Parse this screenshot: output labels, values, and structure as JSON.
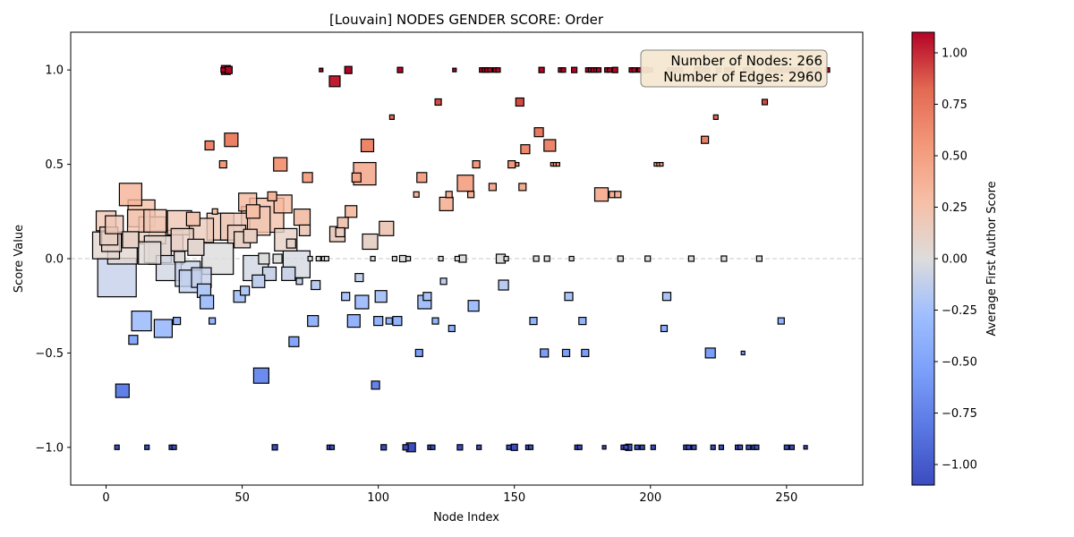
{
  "chart_data": {
    "type": "scatter",
    "title": "[Louvain] NODES GENDER SCORE: Order",
    "xlabel": "Node Index",
    "ylabel": "Score Value",
    "xlim": [
      -13,
      278
    ],
    "ylim": [
      -1.2,
      1.2
    ],
    "x_ticks": [
      0,
      50,
      100,
      150,
      200,
      250
    ],
    "x_tick_labels": [
      "0",
      "50",
      "100",
      "150",
      "200",
      "250"
    ],
    "y_ticks": [
      -1.0,
      -0.5,
      0.0,
      0.5,
      1.0
    ],
    "y_tick_labels": [
      "−1.0",
      "−0.5",
      "0.0",
      "0.5",
      "1.0"
    ],
    "reference_line": {
      "y": 0,
      "style": "dashed",
      "color": "#c8c8c8"
    },
    "info_box": {
      "lines": [
        "Number of Nodes: 266",
        "Number of Edges: 2960"
      ],
      "fill": "#f5e8d2",
      "position": "top-right"
    },
    "colorbar": {
      "label": "Average First Author Score",
      "range": [
        -1.1,
        1.1
      ],
      "ticks": [
        -1.0,
        -0.75,
        -0.5,
        -0.25,
        0.0,
        0.25,
        0.5,
        0.75,
        1.0
      ],
      "tick_labels": [
        "−1.00",
        "−0.75",
        "−0.50",
        "−0.25",
        "0.00",
        "0.25",
        "0.50",
        "0.75",
        "1.00"
      ],
      "colormap": "coolwarm"
    },
    "point_encoding": "square markers; marker size grows with node weight; color = average first author score",
    "points": [
      {
        "x": 0,
        "y": 0.07,
        "s": 30
      },
      {
        "x": 0,
        "y": 0.2,
        "s": 22
      },
      {
        "x": 1,
        "y": 0.12,
        "s": 20
      },
      {
        "x": 3,
        "y": 0.18,
        "s": 20
      },
      {
        "x": 2,
        "y": 0.09,
        "s": 22
      },
      {
        "x": 4,
        "y": -0.1,
        "s": 43
      },
      {
        "x": 6,
        "y": 0.05,
        "s": 33
      },
      {
        "x": 4,
        "y": -1.0,
        "s": 5
      },
      {
        "x": 6,
        "y": -0.7,
        "s": 15
      },
      {
        "x": 9,
        "y": 0.34,
        "s": 25
      },
      {
        "x": 10,
        "y": -0.43,
        "s": 10
      },
      {
        "x": 9,
        "y": 0.1,
        "s": 18
      },
      {
        "x": 12,
        "y": 0.2,
        "s": 25
      },
      {
        "x": 13,
        "y": 0.24,
        "s": 30
      },
      {
        "x": 13,
        "y": -0.33,
        "s": 22
      },
      {
        "x": 15,
        "y": -1.0,
        "s": 5
      },
      {
        "x": 16,
        "y": 0.03,
        "s": 25
      },
      {
        "x": 17,
        "y": 0.15,
        "s": 30
      },
      {
        "x": 18,
        "y": 0.2,
        "s": 25
      },
      {
        "x": 19,
        "y": 0.05,
        "s": 30
      },
      {
        "x": 21,
        "y": -0.37,
        "s": 20
      },
      {
        "x": 22,
        "y": 0.06,
        "s": 38
      },
      {
        "x": 23,
        "y": -0.05,
        "s": 28
      },
      {
        "x": 24,
        "y": -1.0,
        "s": 5
      },
      {
        "x": 25,
        "y": -1.0,
        "s": 5
      },
      {
        "x": 26,
        "y": -0.33,
        "s": 8
      },
      {
        "x": 27,
        "y": 0.19,
        "s": 27
      },
      {
        "x": 27,
        "y": 0.01,
        "s": 12
      },
      {
        "x": 28,
        "y": 0.1,
        "s": 25
      },
      {
        "x": 30,
        "y": -0.08,
        "s": 28
      },
      {
        "x": 31,
        "y": -0.12,
        "s": 25
      },
      {
        "x": 32,
        "y": 0.21,
        "s": 15
      },
      {
        "x": 33,
        "y": 0.06,
        "s": 18
      },
      {
        "x": 35,
        "y": 0.15,
        "s": 27
      },
      {
        "x": 35,
        "y": -0.1,
        "s": 22
      },
      {
        "x": 36,
        "y": -0.17,
        "s": 15
      },
      {
        "x": 37,
        "y": -0.23,
        "s": 15
      },
      {
        "x": 38,
        "y": 0.6,
        "s": 10
      },
      {
        "x": 39,
        "y": -0.33,
        "s": 7
      },
      {
        "x": 40,
        "y": 0.25,
        "s": 6
      },
      {
        "x": 41,
        "y": 0.0,
        "s": 35
      },
      {
        "x": 42,
        "y": 0.17,
        "s": 30
      },
      {
        "x": 43,
        "y": 1.0,
        "s": 5
      },
      {
        "x": 43,
        "y": 0.5,
        "s": 8
      },
      {
        "x": 44,
        "y": 1.0,
        "s": 10
      },
      {
        "x": 45,
        "y": 1.0,
        "s": 8
      },
      {
        "x": 46,
        "y": 0.63,
        "s": 15
      },
      {
        "x": 47,
        "y": 0.17,
        "s": 30
      },
      {
        "x": 48,
        "y": 0.13,
        "s": 20
      },
      {
        "x": 49,
        "y": -0.2,
        "s": 13
      },
      {
        "x": 50,
        "y": 0.1,
        "s": 18
      },
      {
        "x": 51,
        "y": -0.17,
        "s": 10
      },
      {
        "x": 52,
        "y": 0.3,
        "s": 20
      },
      {
        "x": 53,
        "y": 0.12,
        "s": 15
      },
      {
        "x": 54,
        "y": 0.25,
        "s": 15
      },
      {
        "x": 55,
        "y": 0.2,
        "s": 32
      },
      {
        "x": 55,
        "y": -0.05,
        "s": 28
      },
      {
        "x": 56,
        "y": -0.12,
        "s": 14
      },
      {
        "x": 57,
        "y": -0.62,
        "s": 17
      },
      {
        "x": 58,
        "y": 0.0,
        "s": 12
      },
      {
        "x": 59,
        "y": 0.23,
        "s": 38
      },
      {
        "x": 60,
        "y": -0.08,
        "s": 15
      },
      {
        "x": 61,
        "y": 0.33,
        "s": 10
      },
      {
        "x": 62,
        "y": -1.0,
        "s": 6
      },
      {
        "x": 63,
        "y": 0.0,
        "s": 10
      },
      {
        "x": 64,
        "y": 0.5,
        "s": 15
      },
      {
        "x": 65,
        "y": 0.29,
        "s": 20
      },
      {
        "x": 66,
        "y": 0.1,
        "s": 25
      },
      {
        "x": 67,
        "y": -0.08,
        "s": 15
      },
      {
        "x": 68,
        "y": 0.08,
        "s": 10
      },
      {
        "x": 69,
        "y": -0.44,
        "s": 11
      },
      {
        "x": 70,
        "y": -0.03,
        "s": 30
      },
      {
        "x": 71,
        "y": -0.12,
        "s": 7
      },
      {
        "x": 72,
        "y": 0.22,
        "s": 18
      },
      {
        "x": 73,
        "y": 0.15,
        "s": 12
      },
      {
        "x": 74,
        "y": 0.43,
        "s": 11
      },
      {
        "x": 75,
        "y": 0.0,
        "s": 5
      },
      {
        "x": 76,
        "y": -0.33,
        "s": 12
      },
      {
        "x": 77,
        "y": -0.14,
        "s": 10
      },
      {
        "x": 78,
        "y": 0.0,
        "s": 5
      },
      {
        "x": 79,
        "y": 1.0,
        "s": 4
      },
      {
        "x": 80,
        "y": 0.0,
        "s": 5
      },
      {
        "x": 81,
        "y": 0.0,
        "s": 5
      },
      {
        "x": 82,
        "y": -1.0,
        "s": 5
      },
      {
        "x": 83,
        "y": -1.0,
        "s": 5
      },
      {
        "x": 84,
        "y": 0.94,
        "s": 12
      },
      {
        "x": 85,
        "y": 0.13,
        "s": 17
      },
      {
        "x": 86,
        "y": 0.14,
        "s": 10
      },
      {
        "x": 87,
        "y": 0.19,
        "s": 12
      },
      {
        "x": 88,
        "y": -0.2,
        "s": 9
      },
      {
        "x": 89,
        "y": 1.0,
        "s": 8
      },
      {
        "x": 90,
        "y": 0.25,
        "s": 13
      },
      {
        "x": 91,
        "y": -0.33,
        "s": 14
      },
      {
        "x": 92,
        "y": 0.43,
        "s": 10
      },
      {
        "x": 93,
        "y": -0.1,
        "s": 9
      },
      {
        "x": 94,
        "y": -0.23,
        "s": 15
      },
      {
        "x": 95,
        "y": 0.45,
        "s": 25
      },
      {
        "x": 96,
        "y": 0.6,
        "s": 14
      },
      {
        "x": 97,
        "y": 0.09,
        "s": 17
      },
      {
        "x": 98,
        "y": 0.0,
        "s": 5
      },
      {
        "x": 99,
        "y": -0.67,
        "s": 9
      },
      {
        "x": 100,
        "y": -0.33,
        "s": 10
      },
      {
        "x": 101,
        "y": -0.2,
        "s": 13
      },
      {
        "x": 102,
        "y": -1.0,
        "s": 6
      },
      {
        "x": 103,
        "y": 0.16,
        "s": 16
      },
      {
        "x": 104,
        "y": -0.33,
        "s": 7
      },
      {
        "x": 105,
        "y": 0.75,
        "s": 5
      },
      {
        "x": 106,
        "y": 0.0,
        "s": 5
      },
      {
        "x": 107,
        "y": -0.33,
        "s": 10
      },
      {
        "x": 108,
        "y": 1.0,
        "s": 6
      },
      {
        "x": 109,
        "y": 0.0,
        "s": 7
      },
      {
        "x": 110,
        "y": -1.0,
        "s": 6
      },
      {
        "x": 111,
        "y": 0.0,
        "s": 5
      },
      {
        "x": 112,
        "y": -1.0,
        "s": 10
      },
      {
        "x": 114,
        "y": 0.34,
        "s": 6
      },
      {
        "x": 115,
        "y": -0.5,
        "s": 8
      },
      {
        "x": 116,
        "y": 0.43,
        "s": 11
      },
      {
        "x": 117,
        "y": -0.23,
        "s": 15
      },
      {
        "x": 118,
        "y": -0.2,
        "s": 9
      },
      {
        "x": 119,
        "y": -1.0,
        "s": 5
      },
      {
        "x": 120,
        "y": -1.0,
        "s": 5
      },
      {
        "x": 121,
        "y": -0.33,
        "s": 7
      },
      {
        "x": 122,
        "y": 0.83,
        "s": 7
      },
      {
        "x": 123,
        "y": 0.0,
        "s": 5
      },
      {
        "x": 124,
        "y": -0.12,
        "s": 7
      },
      {
        "x": 125,
        "y": 0.29,
        "s": 15
      },
      {
        "x": 126,
        "y": 0.34,
        "s": 7
      },
      {
        "x": 127,
        "y": -0.37,
        "s": 7
      },
      {
        "x": 128,
        "y": 1.0,
        "s": 4
      },
      {
        "x": 129,
        "y": 0.0,
        "s": 5
      },
      {
        "x": 130,
        "y": -1.0,
        "s": 6
      },
      {
        "x": 131,
        "y": 0.0,
        "s": 8
      },
      {
        "x": 132,
        "y": 0.4,
        "s": 18
      },
      {
        "x": 134,
        "y": 0.34,
        "s": 7
      },
      {
        "x": 135,
        "y": -0.25,
        "s": 12
      },
      {
        "x": 136,
        "y": 0.5,
        "s": 8
      },
      {
        "x": 137,
        "y": -1.0,
        "s": 5
      },
      {
        "x": 138,
        "y": 1.0,
        "s": 5
      },
      {
        "x": 139,
        "y": 1.0,
        "s": 5
      },
      {
        "x": 140,
        "y": 1.0,
        "s": 5
      },
      {
        "x": 141,
        "y": 1.0,
        "s": 5
      },
      {
        "x": 142,
        "y": 0.38,
        "s": 8
      },
      {
        "x": 143,
        "y": 1.0,
        "s": 5
      },
      {
        "x": 144,
        "y": 1.0,
        "s": 5
      },
      {
        "x": 145,
        "y": 0.0,
        "s": 10
      },
      {
        "x": 146,
        "y": -0.14,
        "s": 11
      },
      {
        "x": 147,
        "y": 0.0,
        "s": 5
      },
      {
        "x": 148,
        "y": -1.0,
        "s": 5
      },
      {
        "x": 149,
        "y": 0.5,
        "s": 8
      },
      {
        "x": 150,
        "y": -1.0,
        "s": 7
      },
      {
        "x": 151,
        "y": 0.5,
        "s": 4
      },
      {
        "x": 152,
        "y": 0.83,
        "s": 9
      },
      {
        "x": 153,
        "y": 0.38,
        "s": 8
      },
      {
        "x": 154,
        "y": 0.58,
        "s": 10
      },
      {
        "x": 155,
        "y": -1.0,
        "s": 5
      },
      {
        "x": 156,
        "y": -1.0,
        "s": 5
      },
      {
        "x": 157,
        "y": -0.33,
        "s": 8
      },
      {
        "x": 158,
        "y": 0.0,
        "s": 6
      },
      {
        "x": 159,
        "y": 0.67,
        "s": 10
      },
      {
        "x": 160,
        "y": 1.0,
        "s": 6
      },
      {
        "x": 161,
        "y": -0.5,
        "s": 9
      },
      {
        "x": 162,
        "y": 0.0,
        "s": 6
      },
      {
        "x": 163,
        "y": 0.6,
        "s": 13
      },
      {
        "x": 164,
        "y": 0.5,
        "s": 4
      },
      {
        "x": 165,
        "y": 0.5,
        "s": 4
      },
      {
        "x": 166,
        "y": 0.5,
        "s": 4
      },
      {
        "x": 167,
        "y": 1.0,
        "s": 5
      },
      {
        "x": 168,
        "y": 1.0,
        "s": 5
      },
      {
        "x": 169,
        "y": -0.5,
        "s": 8
      },
      {
        "x": 170,
        "y": -0.2,
        "s": 9
      },
      {
        "x": 171,
        "y": 0.0,
        "s": 5
      },
      {
        "x": 172,
        "y": 1.0,
        "s": 6
      },
      {
        "x": 173,
        "y": -1.0,
        "s": 5
      },
      {
        "x": 174,
        "y": -1.0,
        "s": 5
      },
      {
        "x": 175,
        "y": -0.33,
        "s": 8
      },
      {
        "x": 176,
        "y": -0.5,
        "s": 8
      },
      {
        "x": 177,
        "y": 1.0,
        "s": 5
      },
      {
        "x": 178,
        "y": 1.0,
        "s": 5
      },
      {
        "x": 179,
        "y": 1.0,
        "s": 5
      },
      {
        "x": 180,
        "y": 1.0,
        "s": 5
      },
      {
        "x": 181,
        "y": 1.0,
        "s": 5
      },
      {
        "x": 182,
        "y": 0.34,
        "s": 15
      },
      {
        "x": 183,
        "y": -1.0,
        "s": 4
      },
      {
        "x": 184,
        "y": 1.0,
        "s": 5
      },
      {
        "x": 185,
        "y": 1.0,
        "s": 5
      },
      {
        "x": 186,
        "y": 0.34,
        "s": 7
      },
      {
        "x": 187,
        "y": 1.0,
        "s": 6
      },
      {
        "x": 188,
        "y": 0.34,
        "s": 7
      },
      {
        "x": 189,
        "y": 0.0,
        "s": 6
      },
      {
        "x": 190,
        "y": -1.0,
        "s": 5
      },
      {
        "x": 191,
        "y": -1.0,
        "s": 5
      },
      {
        "x": 192,
        "y": -1.0,
        "s": 7
      },
      {
        "x": 193,
        "y": 1.0,
        "s": 5
      },
      {
        "x": 194,
        "y": 1.0,
        "s": 5
      },
      {
        "x": 195,
        "y": -1.0,
        "s": 5
      },
      {
        "x": 196,
        "y": 1.0,
        "s": 5
      },
      {
        "x": 197,
        "y": -1.0,
        "s": 5
      },
      {
        "x": 198,
        "y": 1.0,
        "s": 6
      },
      {
        "x": 199,
        "y": 0.0,
        "s": 6
      },
      {
        "x": 200,
        "y": 1.0,
        "s": 5
      },
      {
        "x": 201,
        "y": -1.0,
        "s": 5
      },
      {
        "x": 202,
        "y": 0.5,
        "s": 4
      },
      {
        "x": 203,
        "y": 0.5,
        "s": 4
      },
      {
        "x": 204,
        "y": 0.5,
        "s": 4
      },
      {
        "x": 205,
        "y": -0.37,
        "s": 7
      },
      {
        "x": 206,
        "y": -0.2,
        "s": 9
      },
      {
        "x": 207,
        "y": 1.0,
        "s": 5
      },
      {
        "x": 208,
        "y": 1.0,
        "s": 5
      },
      {
        "x": 209,
        "y": 1.0,
        "s": 5
      },
      {
        "x": 210,
        "y": 1.0,
        "s": 5
      },
      {
        "x": 211,
        "y": 1.0,
        "s": 5
      },
      {
        "x": 213,
        "y": -1.0,
        "s": 5
      },
      {
        "x": 214,
        "y": -1.0,
        "s": 5
      },
      {
        "x": 215,
        "y": 0.0,
        "s": 6
      },
      {
        "x": 216,
        "y": -1.0,
        "s": 5
      },
      {
        "x": 217,
        "y": 1.0,
        "s": 5
      },
      {
        "x": 218,
        "y": 1.0,
        "s": 7
      },
      {
        "x": 219,
        "y": 1.0,
        "s": 5
      },
      {
        "x": 220,
        "y": 0.63,
        "s": 8
      },
      {
        "x": 221,
        "y": 1.0,
        "s": 5
      },
      {
        "x": 222,
        "y": -0.5,
        "s": 11
      },
      {
        "x": 223,
        "y": -1.0,
        "s": 5
      },
      {
        "x": 224,
        "y": 0.75,
        "s": 5
      },
      {
        "x": 225,
        "y": 1.0,
        "s": 5
      },
      {
        "x": 226,
        "y": -1.0,
        "s": 5
      },
      {
        "x": 227,
        "y": 0.0,
        "s": 6
      },
      {
        "x": 228,
        "y": 1.0,
        "s": 5
      },
      {
        "x": 229,
        "y": 1.0,
        "s": 5
      },
      {
        "x": 230,
        "y": 1.0,
        "s": 5
      },
      {
        "x": 232,
        "y": -1.0,
        "s": 5
      },
      {
        "x": 233,
        "y": -1.0,
        "s": 5
      },
      {
        "x": 234,
        "y": -0.5,
        "s": 4
      },
      {
        "x": 235,
        "y": 1.0,
        "s": 5
      },
      {
        "x": 236,
        "y": -1.0,
        "s": 5
      },
      {
        "x": 237,
        "y": 1.0,
        "s": 5
      },
      {
        "x": 238,
        "y": -1.0,
        "s": 5
      },
      {
        "x": 239,
        "y": -1.0,
        "s": 5
      },
      {
        "x": 240,
        "y": 0.0,
        "s": 6
      },
      {
        "x": 242,
        "y": 0.83,
        "s": 6
      },
      {
        "x": 243,
        "y": 1.0,
        "s": 5
      },
      {
        "x": 245,
        "y": 1.0,
        "s": 5
      },
      {
        "x": 247,
        "y": 1.0,
        "s": 5
      },
      {
        "x": 248,
        "y": -0.33,
        "s": 7
      },
      {
        "x": 249,
        "y": 1.0,
        "s": 5
      },
      {
        "x": 250,
        "y": -1.0,
        "s": 5
      },
      {
        "x": 251,
        "y": 1.0,
        "s": 5
      },
      {
        "x": 252,
        "y": -1.0,
        "s": 5
      },
      {
        "x": 253,
        "y": 1.0,
        "s": 5
      },
      {
        "x": 255,
        "y": 1.0,
        "s": 5
      },
      {
        "x": 257,
        "y": -1.0,
        "s": 4
      },
      {
        "x": 258,
        "y": 1.0,
        "s": 5
      },
      {
        "x": 260,
        "y": 1.0,
        "s": 5
      },
      {
        "x": 262,
        "y": 1.0,
        "s": 5
      },
      {
        "x": 265,
        "y": 1.0,
        "s": 5
      }
    ]
  }
}
